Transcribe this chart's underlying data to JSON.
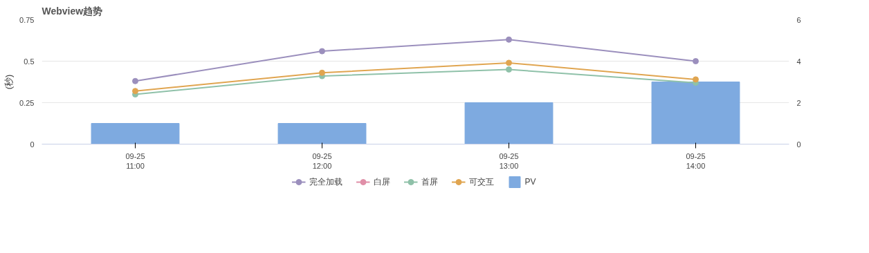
{
  "chart_data": {
    "type": "line",
    "title": "Webview趋势",
    "ylabel": "(秒)",
    "categories": [
      "09-25\n11:00",
      "09-25\n12:00",
      "09-25\n13:00",
      "09-25\n14:00"
    ],
    "series": [
      {
        "name": "完全加载",
        "color": "#9b8fbd",
        "values": [
          0.38,
          0.56,
          0.63,
          0.5
        ]
      },
      {
        "name": "白屏",
        "color": "#e08fa8",
        "values": [
          null,
          null,
          null,
          null
        ]
      },
      {
        "name": "首屏",
        "color": "#8fc1a9",
        "values": [
          0.3,
          0.41,
          0.45,
          0.37
        ]
      },
      {
        "name": "可交互",
        "color": "#e0a550",
        "values": [
          0.32,
          0.43,
          0.49,
          0.39
        ]
      },
      {
        "name": "PV",
        "type": "bar",
        "axis": "y2",
        "color": "#7eaae0",
        "values": [
          1,
          1,
          2,
          3
        ]
      }
    ],
    "ylim": [
      0,
      0.75
    ],
    "yticks": [
      0,
      0.25,
      0.5,
      0.75
    ],
    "y2lim": [
      0,
      6
    ],
    "y2ticks": [
      0,
      2,
      4,
      6
    ],
    "grid": "y",
    "legend": "bottom",
    "marker": "circle"
  }
}
